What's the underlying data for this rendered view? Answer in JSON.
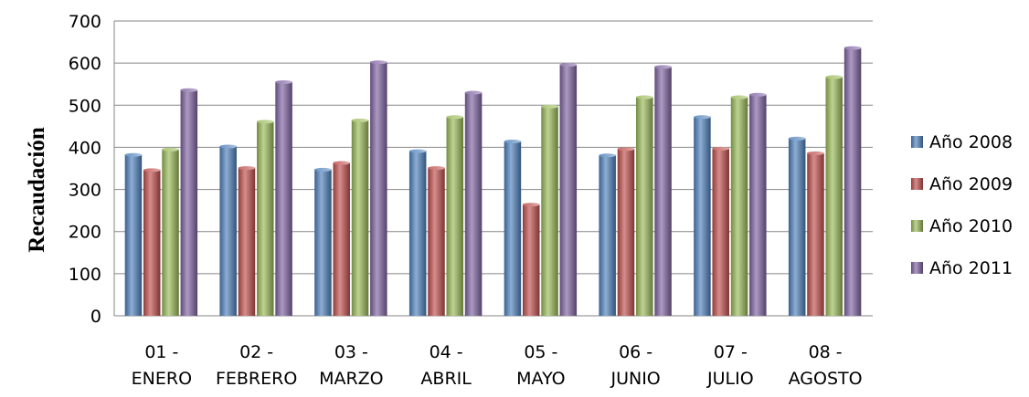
{
  "chart_data": {
    "type": "bar",
    "title": "",
    "xlabel": "",
    "ylabel": "Recaudación",
    "ylim": [
      0,
      700
    ],
    "yticks": [
      0,
      100,
      200,
      300,
      400,
      500,
      600,
      700
    ],
    "grid": true,
    "legend_position": "right",
    "categories": [
      [
        "01 -",
        "ENERO"
      ],
      [
        "02 -",
        "FEBRERO"
      ],
      [
        "03 -",
        "MARZO"
      ],
      [
        "04 -",
        "ABRIL"
      ],
      [
        "05 -",
        "MAYO"
      ],
      [
        "06 -",
        "JUNIO"
      ],
      [
        "07 -",
        "JULIO"
      ],
      [
        "08 -",
        "AGOSTO"
      ]
    ],
    "series": [
      {
        "name": "Año 2008",
        "color": "#4F81BD",
        "values": [
          383,
          403,
          348,
          392,
          415,
          382,
          473,
          422
        ]
      },
      {
        "name": "Año 2009",
        "color": "#C0504D",
        "values": [
          347,
          352,
          364,
          352,
          265,
          397,
          398,
          387
        ]
      },
      {
        "name": "Año 2010",
        "color": "#9BBB59",
        "values": [
          396,
          462,
          465,
          473,
          498,
          520,
          520,
          568
        ]
      },
      {
        "name": "Año 2011",
        "color": "#8064A2",
        "values": [
          537,
          556,
          603,
          531,
          597,
          592,
          526,
          637
        ]
      }
    ]
  }
}
